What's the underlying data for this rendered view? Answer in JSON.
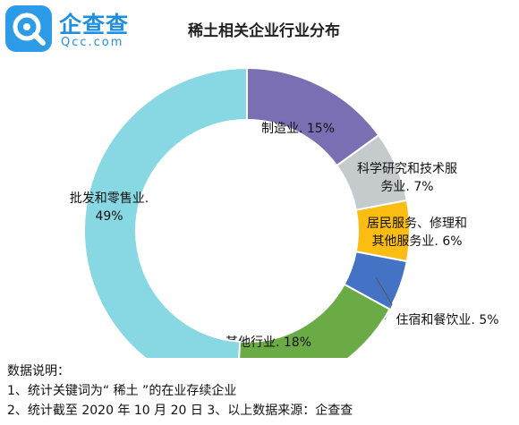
{
  "logo": {
    "name_cn": "企查查",
    "domain": "Qcc.com",
    "icon": "magnifier-q-logo-icon"
  },
  "notes": {
    "heading": "数据说明：",
    "line1": "1、统计关键词为“ 稀土 ”的在业存续企业",
    "line2": "2、统计截至 2020 年 10 月 20 日  3、以上数据来源：企查查"
  },
  "chart_data": {
    "type": "pie",
    "donut": true,
    "title": "稀土相关企业行业分布",
    "series": [
      {
        "label": "制造业",
        "value": 15,
        "display": [
          "制造业. 15%"
        ],
        "color": "#7b6fb3"
      },
      {
        "label": "科学研究和技术服务业",
        "value": 7,
        "display": [
          "科学研究和技术服",
          "务业. 7%"
        ],
        "color": "#c5cacd"
      },
      {
        "label": "居民服务、修理和其他服务业",
        "value": 6,
        "display": [
          "居民服务、修理和",
          "其他服务业. 6%"
        ],
        "color": "#fbbd11"
      },
      {
        "label": "住宿和餐饮业",
        "value": 5,
        "display": [
          "住宿和餐饮业. 5%"
        ],
        "color": "#4472c4"
      },
      {
        "label": "其他行业",
        "value": 18,
        "display": [
          "其他行业. 18%"
        ],
        "color": "#6aab46"
      },
      {
        "label": "批发和零售业",
        "value": 49,
        "display": [
          "批发和零售业.",
          "49%"
        ],
        "color": "#87d8e2"
      }
    ]
  }
}
